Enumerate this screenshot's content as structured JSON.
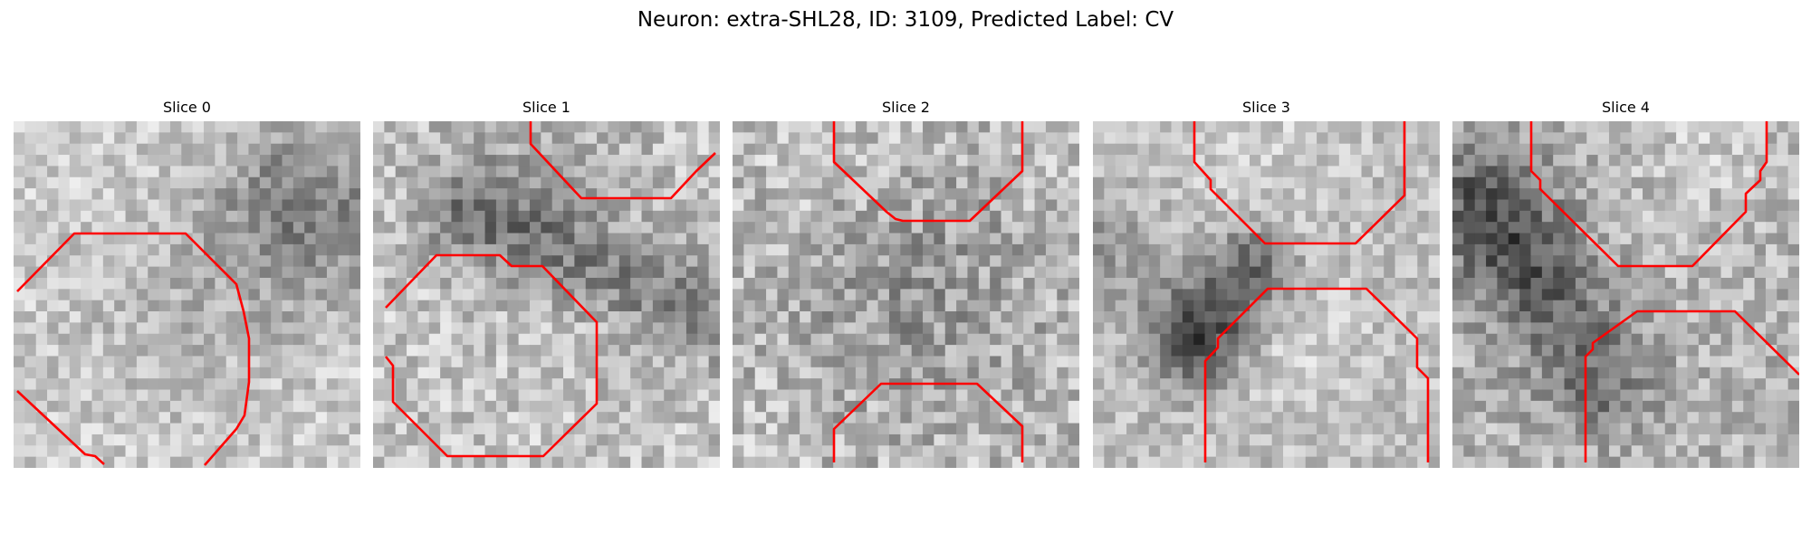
{
  "figure": {
    "title": "Neuron: extra-SHL28, ID: 3109, Predicted Label: CV"
  },
  "panels": [
    {
      "label": "Slice 0",
      "image": "grayscale patch with light-gray background and a darker speckled region in the upper right",
      "contour_color": "#ff0000"
    },
    {
      "label": "Slice 1",
      "image": "grayscale patch with a roughly round cell body outlined at lower left and a dark band on the right",
      "contour_color": "#ff0000"
    },
    {
      "label": "Slice 2",
      "image": "grayscale patch with speckled texture between upper and lower contours",
      "contour_color": "#ff0000"
    },
    {
      "label": "Slice 3",
      "image": "grayscale patch with a dark diagonal streak in the center-left",
      "contour_color": "#ff0000"
    },
    {
      "label": "Slice 4",
      "image": "grayscale patch with a dark diagonal band running from upper left toward the bottom center",
      "contour_color": "#ff0000"
    }
  ]
}
